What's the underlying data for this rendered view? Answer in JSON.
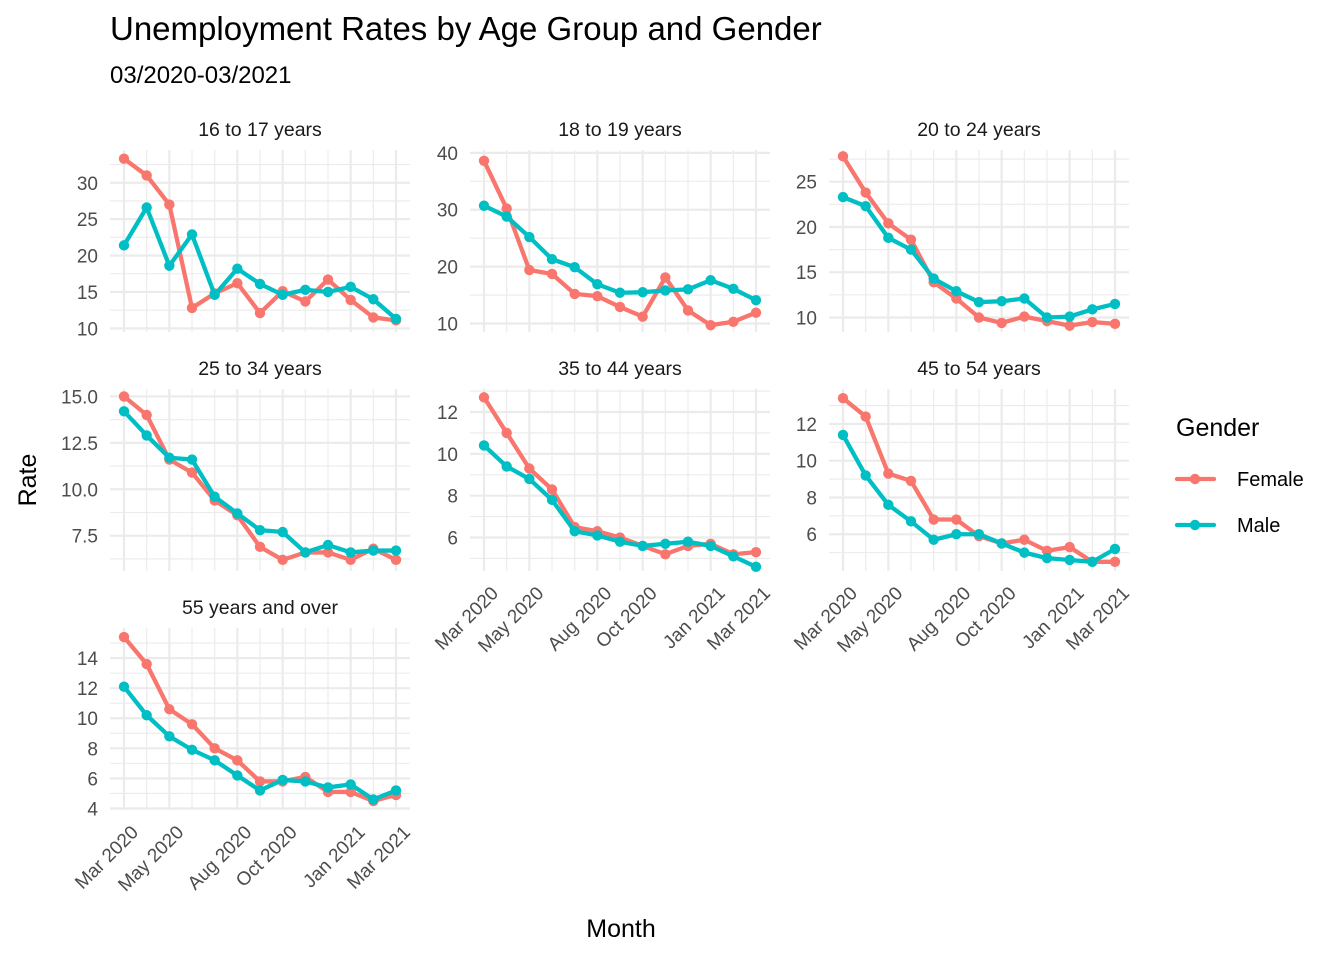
{
  "chart_data": {
    "type": "line",
    "title": "Unemployment Rates by Age Group and Gender",
    "subtitle": "03/2020-03/2021",
    "xlabel": "Month",
    "ylabel": "Rate",
    "legend": {
      "title": "Gender",
      "placement": "right"
    },
    "grid": true,
    "facet_layout": "3 columns",
    "x": [
      "Mar 2020",
      "Apr 2020",
      "May 2020",
      "Jun 2020",
      "Jul 2020",
      "Aug 2020",
      "Sep 2020",
      "Oct 2020",
      "Nov 2020",
      "Dec 2020",
      "Jan 2021",
      "Feb 2021",
      "Mar 2021"
    ],
    "x_tick_labels": [
      "Mar 2020",
      "May 2020",
      "Aug 2020",
      "Oct 2020",
      "Jan 2021",
      "Mar 2021"
    ],
    "series_styles": [
      {
        "name": "Female",
        "color": "#F8766D"
      },
      {
        "name": "Male",
        "color": "#00BFC4"
      }
    ],
    "facets": [
      {
        "label": "16 to 17 years",
        "ylim": [
          9.5,
          34.5
        ],
        "y_ticks": [
          10,
          15,
          20,
          25,
          30
        ],
        "y_tick_labels": [
          "10",
          "15",
          "20",
          "25",
          "30"
        ],
        "series": [
          {
            "name": "Female",
            "values": [
              33.3,
              31.0,
              27.0,
              12.8,
              14.8,
              16.2,
              12.1,
              15.1,
              13.7,
              16.7,
              13.9,
              11.5,
              11.1
            ]
          },
          {
            "name": "Male",
            "values": [
              21.4,
              26.6,
              18.6,
              22.9,
              14.6,
              18.2,
              16.1,
              14.6,
              15.3,
              15.0,
              15.7,
              14.0,
              11.3
            ]
          }
        ]
      },
      {
        "label": "18 to 19 years",
        "ylim": [
          8.5,
          40.5
        ],
        "y_ticks": [
          10,
          20,
          30,
          40
        ],
        "y_tick_labels": [
          "10",
          "20",
          "30",
          "40"
        ],
        "series": [
          {
            "name": "Female",
            "values": [
              38.6,
              30.2,
              19.4,
              18.7,
              15.2,
              14.8,
              12.9,
              11.2,
              18.1,
              12.3,
              9.7,
              10.3,
              11.9
            ]
          },
          {
            "name": "Male",
            "values": [
              30.7,
              28.8,
              25.2,
              21.3,
              19.9,
              16.9,
              15.4,
              15.5,
              15.8,
              16.0,
              17.6,
              16.1,
              14.1
            ]
          }
        ]
      },
      {
        "label": "20 to 24 years",
        "ylim": [
          8.4,
          28.5
        ],
        "y_ticks": [
          10,
          15,
          20,
          25
        ],
        "y_tick_labels": [
          "10",
          "15",
          "20",
          "25"
        ],
        "series": [
          {
            "name": "Female",
            "values": [
              27.8,
              23.8,
              20.4,
              18.6,
              13.9,
              12.1,
              10.0,
              9.4,
              10.1,
              9.6,
              9.1,
              9.5,
              9.3
            ]
          },
          {
            "name": "Male",
            "values": [
              23.3,
              22.3,
              18.8,
              17.5,
              14.3,
              12.9,
              11.7,
              11.8,
              12.1,
              10.0,
              10.1,
              10.9,
              11.5
            ]
          }
        ]
      },
      {
        "label": "25 to 34 years",
        "ylim": [
          5.6,
          15.4
        ],
        "y_ticks": [
          7.5,
          10.0,
          12.5,
          15.0
        ],
        "y_tick_labels": [
          "7.5",
          "10.0",
          "12.5",
          "15.0"
        ],
        "series": [
          {
            "name": "Female",
            "values": [
              15.0,
              14.0,
              11.6,
              10.9,
              9.4,
              8.6,
              6.9,
              6.2,
              6.6,
              6.6,
              6.2,
              6.8,
              6.2
            ]
          },
          {
            "name": "Male",
            "values": [
              14.2,
              12.9,
              11.7,
              11.6,
              9.6,
              8.7,
              7.8,
              7.7,
              6.6,
              7.0,
              6.6,
              6.7,
              6.7
            ]
          }
        ]
      },
      {
        "label": "35 to 44 years",
        "ylim": [
          4.4,
          13.1
        ],
        "y_ticks": [
          6,
          8,
          10,
          12
        ],
        "y_tick_labels": [
          "6",
          "8",
          "10",
          "12"
        ],
        "series": [
          {
            "name": "Female",
            "values": [
              12.7,
              11.0,
              9.3,
              8.3,
              6.5,
              6.3,
              6.0,
              5.6,
              5.2,
              5.6,
              5.7,
              5.2,
              5.3
            ]
          },
          {
            "name": "Male",
            "values": [
              10.4,
              9.4,
              8.8,
              7.8,
              6.3,
              6.1,
              5.8,
              5.6,
              5.7,
              5.8,
              5.6,
              5.1,
              4.6
            ]
          }
        ]
      },
      {
        "label": "45 to 54 years",
        "ylim": [
          4.0,
          13.9
        ],
        "y_ticks": [
          6,
          8,
          10,
          12
        ],
        "y_tick_labels": [
          "6",
          "8",
          "10",
          "12"
        ],
        "series": [
          {
            "name": "Female",
            "values": [
              13.4,
              12.4,
              9.3,
              8.9,
              6.8,
              6.8,
              5.9,
              5.5,
              5.7,
              5.1,
              5.3,
              4.5,
              4.5
            ]
          },
          {
            "name": "Male",
            "values": [
              11.4,
              9.2,
              7.6,
              6.7,
              5.7,
              6.0,
              6.0,
              5.5,
              5.0,
              4.7,
              4.6,
              4.5,
              5.2
            ]
          }
        ]
      },
      {
        "label": "55 years and over",
        "ylim": [
          3.9,
          16.0
        ],
        "y_ticks": [
          4,
          6,
          8,
          10,
          12,
          14
        ],
        "y_tick_labels": [
          "4",
          "6",
          "8",
          "10",
          "12",
          "14"
        ],
        "series": [
          {
            "name": "Female",
            "values": [
              15.4,
              13.6,
              10.6,
              9.6,
              8.0,
              7.2,
              5.8,
              5.8,
              6.1,
              5.1,
              5.1,
              4.5,
              4.9
            ]
          },
          {
            "name": "Male",
            "values": [
              12.1,
              10.2,
              8.8,
              7.9,
              7.2,
              6.2,
              5.2,
              5.9,
              5.8,
              5.4,
              5.6,
              4.6,
              5.2
            ]
          }
        ]
      }
    ]
  }
}
